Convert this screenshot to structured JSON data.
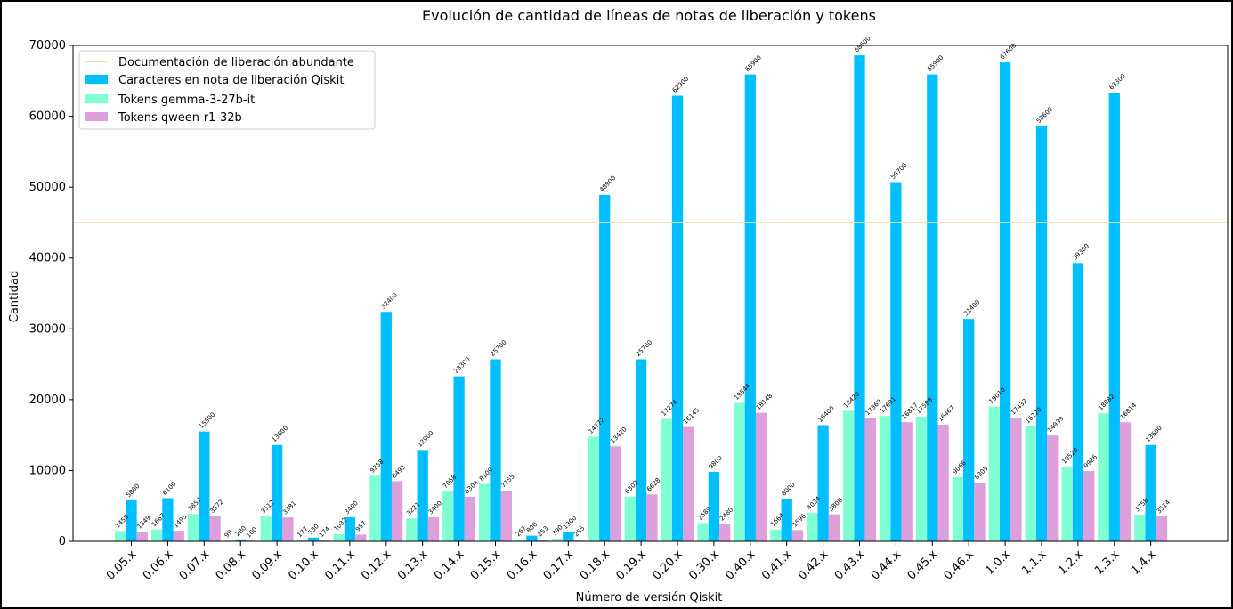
{
  "chart_data": {
    "type": "bar",
    "title": "Evolución de cantidad de líneas de notas de liberación y tokens",
    "xlabel": "Número de versión Qiskit",
    "ylabel": "Cantidad",
    "ylim": [
      0,
      70000
    ],
    "yticks": [
      0,
      10000,
      20000,
      30000,
      40000,
      50000,
      60000,
      70000
    ],
    "grid": false,
    "legend_position": "top-left",
    "categories": [
      "0.05.x",
      "0.06.x",
      "0.07.x",
      "0.08.x",
      "0.09.x",
      "0.10.x",
      "0.11.x",
      "0.12.x",
      "0.13.x",
      "0.14.x",
      "0.15.x",
      "0.16.x",
      "0.17.x",
      "0.18.x",
      "0.19.x",
      "0.20.x",
      "0.30.x",
      "0.40.x",
      "0.41.x",
      "0.42.x",
      "0.43.x",
      "0.44.x",
      "0.45.x",
      "0.46.x",
      "1.0.x",
      "1.1.x",
      "1.2.x",
      "1.3.x",
      "1.4.x"
    ],
    "series": [
      {
        "name": "Caracteres en nota de liberación Qiskit",
        "color": "#00bfff",
        "values": [
          5800,
          6100,
          15500,
          280,
          13600,
          530,
          3400,
          32400,
          12900,
          23300,
          25700,
          800,
          1300,
          48900,
          25700,
          62900,
          9800,
          65900,
          6000,
          16400,
          68600,
          50700,
          65900,
          31400,
          67600,
          58600,
          39300,
          63300,
          13600
        ]
      },
      {
        "name": "Tokens gemma-3-27b-it",
        "color": "#7fffd4",
        "values": [
          1458,
          1667,
          3857,
          99,
          3512,
          177,
          1032,
          9258,
          3221,
          7068,
          8109,
          267,
          390,
          14772,
          6302,
          17274,
          2589,
          19544,
          1664,
          4034,
          18420,
          17691,
          17588,
          9066,
          19010,
          16220,
          10520,
          18082,
          3758
        ]
      },
      {
        "name": "Tokens qween-r1-32b",
        "color": "#dda0dd",
        "values": [
          1349,
          1495,
          3572,
          100,
          3381,
          174,
          957,
          8493,
          3400,
          6304,
          7155,
          253,
          255,
          13420,
          6628,
          16145,
          2480,
          18148,
          1596,
          3808,
          17369,
          16817,
          16467,
          8305,
          17432,
          14939,
          9926,
          16814,
          3514
        ]
      }
    ],
    "reference_lines": [
      {
        "name": "Documentación de liberación abundante",
        "value": 45000,
        "color": "#f5deb3"
      }
    ]
  }
}
